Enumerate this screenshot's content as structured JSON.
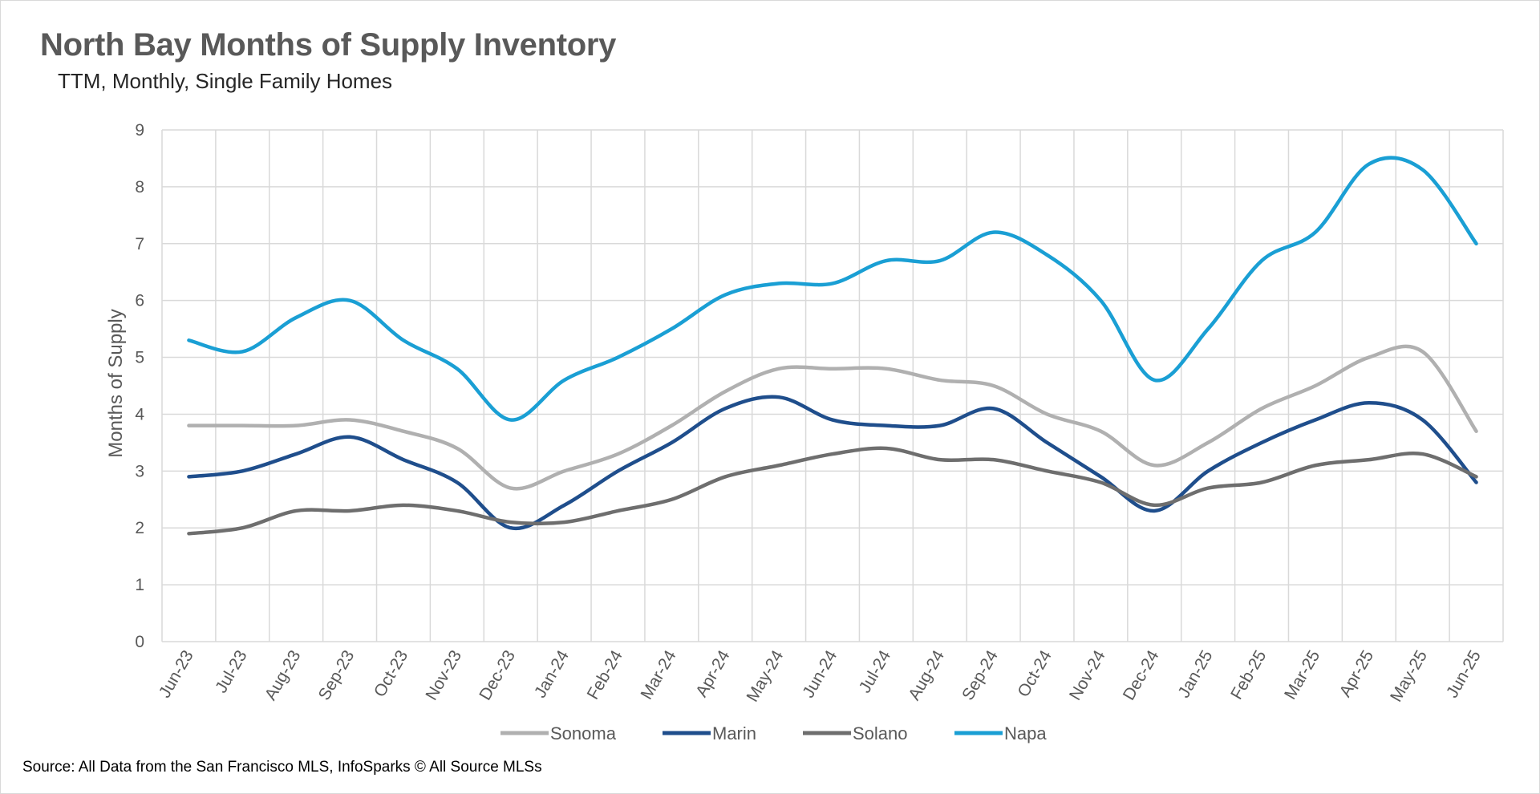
{
  "title": "North Bay Months of Supply Inventory",
  "subtitle": "TTM, Monthly, Single Family Homes",
  "source": "Source: All Data from the San Francisco MLS, InfoSparks © All Source MLSs",
  "chart_data": {
    "type": "line",
    "title": "North Bay Months of Supply Inventory",
    "subtitle": "TTM, Monthly, Single Family Homes",
    "xlabel": "",
    "ylabel": "Months of Supply",
    "ylim": [
      0,
      9
    ],
    "yticks": [
      0,
      1,
      2,
      3,
      4,
      5,
      6,
      7,
      8,
      9
    ],
    "grid": true,
    "legend_position": "bottom",
    "smooth": true,
    "categories": [
      "Jun-23",
      "Jul-23",
      "Aug-23",
      "Sep-23",
      "Oct-23",
      "Nov-23",
      "Dec-23",
      "Jan-24",
      "Feb-24",
      "Mar-24",
      "Apr-24",
      "May-24",
      "Jun-24",
      "Jul-24",
      "Aug-24",
      "Sep-24",
      "Oct-24",
      "Nov-24",
      "Dec-24",
      "Jan-25",
      "Feb-25",
      "Mar-25",
      "Apr-25",
      "May-25",
      "Jun-25"
    ],
    "series": [
      {
        "name": "Sonoma",
        "color": "#b0b0b0",
        "values": [
          3.8,
          3.8,
          3.8,
          3.9,
          3.7,
          3.4,
          2.7,
          3.0,
          3.3,
          3.8,
          4.4,
          4.8,
          4.8,
          4.8,
          4.6,
          4.5,
          4.0,
          3.7,
          3.1,
          3.5,
          4.1,
          4.5,
          5.0,
          5.1,
          3.7
        ]
      },
      {
        "name": "Marin",
        "color": "#1f4e8c",
        "values": [
          2.9,
          3.0,
          3.3,
          3.6,
          3.2,
          2.8,
          2.0,
          2.4,
          3.0,
          3.5,
          4.1,
          4.3,
          3.9,
          3.8,
          3.8,
          4.1,
          3.5,
          2.9,
          2.3,
          3.0,
          3.5,
          3.9,
          4.2,
          3.9,
          2.8
        ]
      },
      {
        "name": "Solano",
        "color": "#6e6e6e",
        "values": [
          1.9,
          2.0,
          2.3,
          2.3,
          2.4,
          2.3,
          2.1,
          2.1,
          2.3,
          2.5,
          2.9,
          3.1,
          3.3,
          3.4,
          3.2,
          3.2,
          3.0,
          2.8,
          2.4,
          2.7,
          2.8,
          3.1,
          3.2,
          3.3,
          2.9
        ]
      },
      {
        "name": "Napa",
        "color": "#1a9fd4",
        "values": [
          5.3,
          5.1,
          5.7,
          6.0,
          5.3,
          4.8,
          3.9,
          4.6,
          5.0,
          5.5,
          6.1,
          6.3,
          6.3,
          6.7,
          6.7,
          7.2,
          6.8,
          6.0,
          4.6,
          5.5,
          6.7,
          7.2,
          8.4,
          8.3,
          7.0
        ]
      }
    ]
  }
}
